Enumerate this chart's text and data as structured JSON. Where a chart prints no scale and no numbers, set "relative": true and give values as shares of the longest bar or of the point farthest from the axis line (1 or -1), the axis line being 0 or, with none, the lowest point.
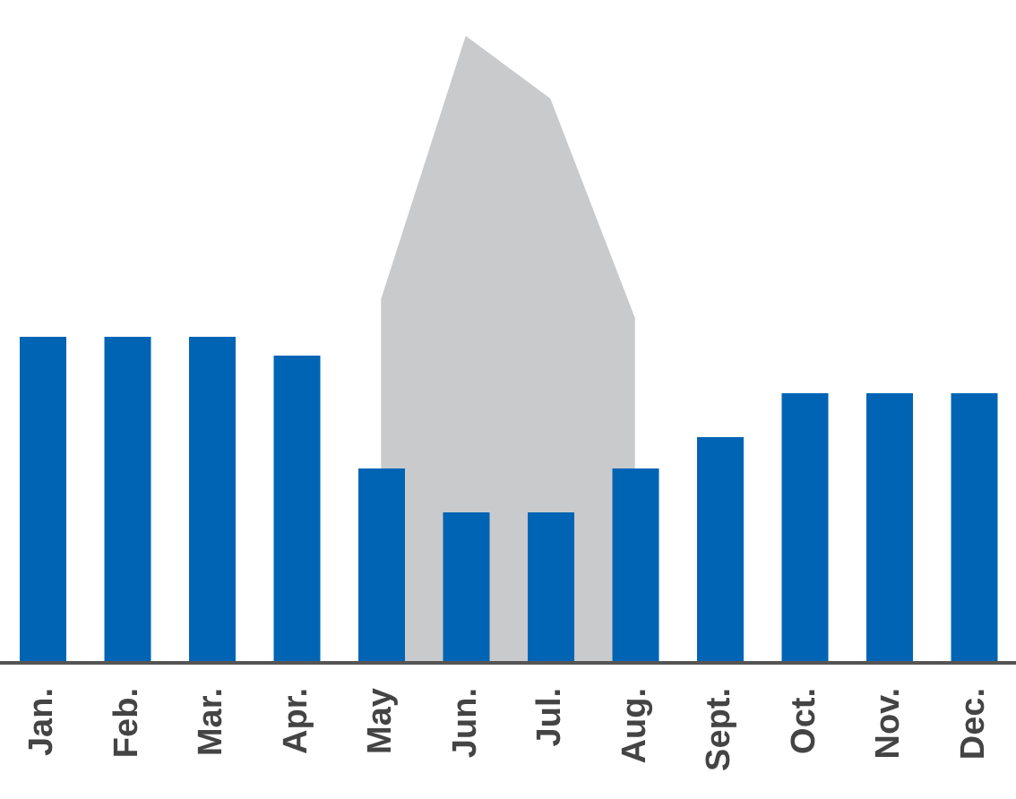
{
  "chart_data": {
    "type": "bar",
    "relative": true,
    "categories": [
      "Jan.",
      "Feb.",
      "Mar.",
      "Apr.",
      "May",
      "Jun.",
      "Jul.",
      "Aug.",
      "Sept.",
      "Oct.",
      "Nov.",
      "Dec."
    ],
    "series": [
      {
        "type": "area",
        "color": "#c8cacc",
        "values": [
          null,
          null,
          null,
          null,
          0.58,
          1.0,
          0.9,
          0.55,
          null,
          null,
          null,
          null
        ]
      },
      {
        "color": "#0064b4",
        "values": [
          0.52,
          0.52,
          0.52,
          0.49,
          0.31,
          0.24,
          0.24,
          0.31,
          0.36,
          0.43,
          0.43,
          0.43
        ]
      }
    ],
    "grid": false,
    "legend": false
  }
}
